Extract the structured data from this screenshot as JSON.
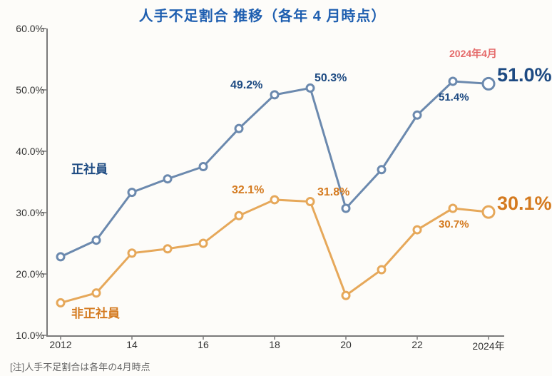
{
  "title": "人手不足割合 推移（各年 4 月時点）",
  "note": "[注]人手不足割合は各年の4月時点",
  "chart": {
    "type": "line",
    "background_color": "#fdfcf9",
    "axis_color": "#7a7a7a",
    "x_years": [
      2012,
      2013,
      2014,
      2015,
      2016,
      2017,
      2018,
      2019,
      2020,
      2021,
      2022,
      2023,
      2024
    ],
    "x_ticks": [
      {
        "year": 2012,
        "label": "2012"
      },
      {
        "year": 2014,
        "label": "14"
      },
      {
        "year": 2016,
        "label": "16"
      },
      {
        "year": 2018,
        "label": "18"
      },
      {
        "year": 2020,
        "label": "20"
      },
      {
        "year": 2022,
        "label": "22"
      },
      {
        "year": 2024,
        "label": "2024年"
      }
    ],
    "y_min": 10.0,
    "y_max": 60.0,
    "y_tick_step": 10.0,
    "y_tick_format_suffix": "%",
    "y_tick_format_decimals": 1,
    "series": [
      {
        "id": "regular",
        "name": "正社員",
        "name_color": "#1d4a82",
        "name_pos": {
          "x": 100,
          "y": 223
        },
        "color": "#6b89ae",
        "marker": "circle",
        "marker_radius": 5,
        "line_width": 3,
        "values": [
          22.8,
          25.5,
          33.3,
          35.5,
          37.5,
          43.7,
          49.2,
          50.3,
          30.7,
          37.0,
          45.9,
          51.4,
          51.0
        ],
        "point_labels": [
          {
            "idx": 6,
            "text": "49.2%",
            "dx": -62,
            "dy": -22,
            "fontsize": 16,
            "color": "#1d4a82"
          },
          {
            "idx": 7,
            "text": "50.3%",
            "dx": 6,
            "dy": -22,
            "fontsize": 16,
            "color": "#1d4a82"
          },
          {
            "idx": 11,
            "text": "51.4%",
            "dx": -20,
            "dy": 14,
            "fontsize": 15,
            "color": "#1d4a82"
          }
        ],
        "endpoint_label": {
          "text": "51.0%",
          "dx": 12,
          "dy": -14,
          "fontsize": 27,
          "color": "#1d4a82",
          "weight": "bold"
        },
        "endpoint_title": {
          "text": "2024年4月",
          "dx": -10,
          "dy": -40,
          "fontsize": 14,
          "color": "#e56a6a",
          "weight": "bold"
        },
        "endpoint_marker_radius": 8
      },
      {
        "id": "nonregular",
        "name": "非正社員",
        "name_color": "#d47a1f",
        "name_pos": {
          "x": 100,
          "y": 425
        },
        "color": "#e6a85a",
        "marker": "circle",
        "marker_radius": 5,
        "line_width": 3,
        "values": [
          15.3,
          16.9,
          23.4,
          24.1,
          25.0,
          29.5,
          32.1,
          31.8,
          16.5,
          20.7,
          27.2,
          30.7,
          30.1
        ],
        "point_labels": [
          {
            "idx": 6,
            "text": "32.1%",
            "dx": -60,
            "dy": -22,
            "fontsize": 16,
            "color": "#d47a1f"
          },
          {
            "idx": 7,
            "text": "31.8%",
            "dx": 10,
            "dy": -22,
            "fontsize": 16,
            "color": "#d47a1f"
          },
          {
            "idx": 11,
            "text": "30.7%",
            "dx": -20,
            "dy": 14,
            "fontsize": 15,
            "color": "#d47a1f"
          }
        ],
        "endpoint_label": {
          "text": "30.1%",
          "dx": 12,
          "dy": -14,
          "fontsize": 27,
          "color": "#d47a1f",
          "weight": "bold"
        },
        "endpoint_marker_radius": 8
      }
    ]
  }
}
